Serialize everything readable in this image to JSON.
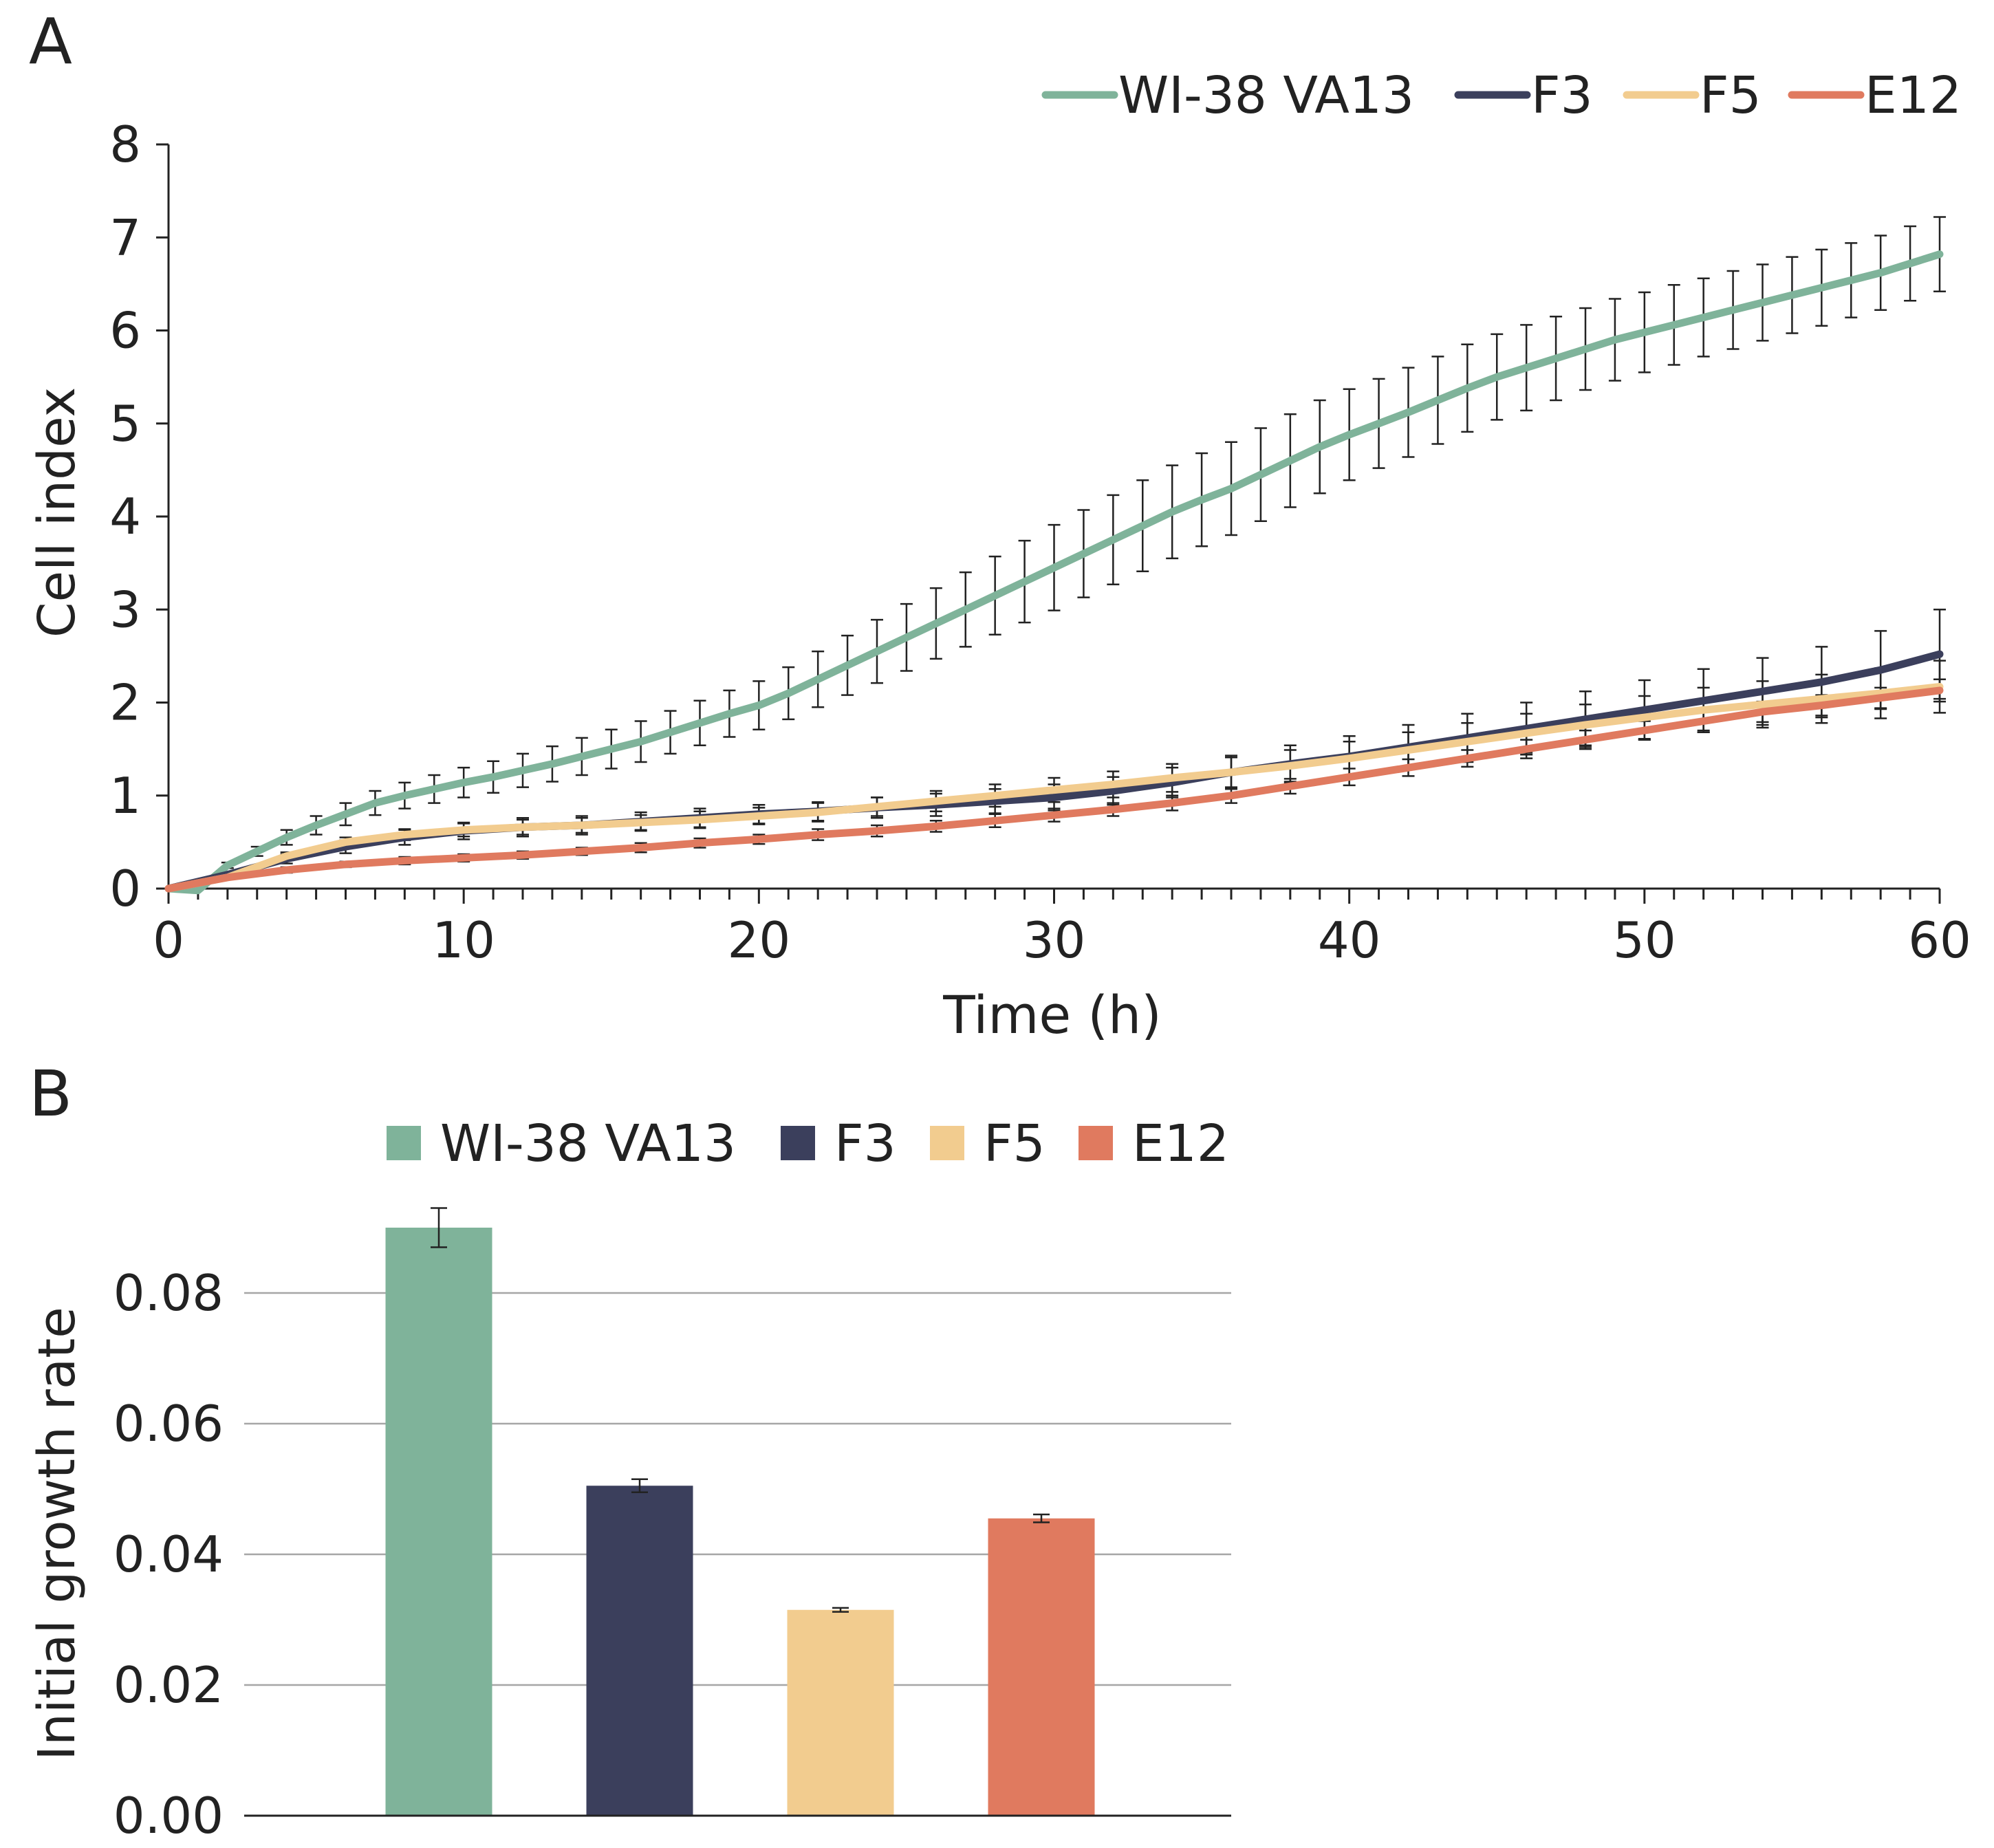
{
  "colors": {
    "WI-38 VA13": "#7fb39a",
    "F3": "#3b3f5c",
    "F5": "#f2cc8f",
    "E12": "#e07a5f",
    "axis": "#222222",
    "grid": "#a6a6a6"
  },
  "chart_data": [
    {
      "panel_label": "A",
      "type": "line",
      "xlabel": "Time (h)",
      "ylabel": "Cell index",
      "xlim": [
        0,
        60
      ],
      "ylim": [
        0,
        8
      ],
      "xticks": [
        "0",
        "10",
        "20",
        "30",
        "40",
        "50",
        "60"
      ],
      "yticks": [
        "0",
        "1",
        "2",
        "3",
        "4",
        "5",
        "6",
        "7",
        "8"
      ],
      "grid": false,
      "legend_position": "top-right",
      "series": [
        {
          "name": "WI-38 VA13",
          "x": [
            0,
            1,
            2,
            3,
            4,
            5,
            6,
            7,
            8,
            9,
            10,
            11,
            12,
            13,
            14,
            15,
            16,
            17,
            18,
            19,
            20,
            21,
            22,
            23,
            24,
            25,
            26,
            27,
            28,
            29,
            30,
            31,
            32,
            33,
            34,
            35,
            36,
            37,
            38,
            39,
            40,
            41,
            42,
            43,
            44,
            45,
            46,
            47,
            48,
            49,
            50,
            51,
            52,
            53,
            54,
            55,
            56,
            57,
            58,
            59,
            60
          ],
          "y": [
            0,
            -0.02,
            0.25,
            0.4,
            0.55,
            0.68,
            0.8,
            0.92,
            1.0,
            1.07,
            1.14,
            1.2,
            1.27,
            1.34,
            1.42,
            1.5,
            1.58,
            1.68,
            1.78,
            1.88,
            1.97,
            2.1,
            2.25,
            2.4,
            2.55,
            2.7,
            2.85,
            3.0,
            3.15,
            3.3,
            3.45,
            3.6,
            3.75,
            3.9,
            4.05,
            4.18,
            4.3,
            4.45,
            4.6,
            4.75,
            4.88,
            5.0,
            5.12,
            5.25,
            5.38,
            5.5,
            5.6,
            5.7,
            5.8,
            5.9,
            5.98,
            6.06,
            6.14,
            6.22,
            6.3,
            6.38,
            6.46,
            6.54,
            6.62,
            6.72,
            6.82
          ],
          "err": [
            0,
            0,
            0.03,
            0.05,
            0.08,
            0.1,
            0.12,
            0.13,
            0.14,
            0.15,
            0.16,
            0.17,
            0.18,
            0.19,
            0.2,
            0.21,
            0.22,
            0.23,
            0.24,
            0.25,
            0.26,
            0.28,
            0.3,
            0.32,
            0.34,
            0.36,
            0.38,
            0.4,
            0.42,
            0.44,
            0.46,
            0.47,
            0.48,
            0.49,
            0.5,
            0.5,
            0.5,
            0.5,
            0.5,
            0.5,
            0.49,
            0.48,
            0.48,
            0.47,
            0.47,
            0.46,
            0.46,
            0.45,
            0.44,
            0.44,
            0.43,
            0.43,
            0.42,
            0.42,
            0.41,
            0.41,
            0.41,
            0.4,
            0.4,
            0.4,
            0.4
          ]
        },
        {
          "name": "F3",
          "x": [
            0,
            2,
            4,
            6,
            8,
            10,
            12,
            14,
            16,
            18,
            20,
            22,
            24,
            26,
            28,
            30,
            32,
            34,
            36,
            38,
            40,
            42,
            44,
            46,
            48,
            50,
            52,
            54,
            56,
            58,
            60
          ],
          "y": [
            0,
            0.15,
            0.32,
            0.45,
            0.55,
            0.62,
            0.66,
            0.68,
            0.72,
            0.76,
            0.8,
            0.83,
            0.87,
            0.9,
            0.94,
            0.98,
            1.05,
            1.14,
            1.25,
            1.34,
            1.42,
            1.52,
            1.62,
            1.72,
            1.82,
            1.92,
            2.02,
            2.12,
            2.22,
            2.35,
            2.52
          ],
          "err": [
            0,
            0.03,
            0.05,
            0.07,
            0.08,
            0.09,
            0.1,
            0.1,
            0.1,
            0.1,
            0.1,
            0.1,
            0.11,
            0.12,
            0.13,
            0.14,
            0.15,
            0.16,
            0.18,
            0.2,
            0.22,
            0.24,
            0.26,
            0.28,
            0.3,
            0.32,
            0.34,
            0.36,
            0.38,
            0.42,
            0.48
          ]
        },
        {
          "name": "F5",
          "x": [
            0,
            2,
            4,
            6,
            8,
            10,
            12,
            14,
            16,
            18,
            20,
            22,
            24,
            26,
            28,
            30,
            32,
            34,
            36,
            38,
            40,
            42,
            44,
            46,
            48,
            50,
            52,
            54,
            56,
            58,
            60
          ],
          "y": [
            0,
            0.12,
            0.35,
            0.5,
            0.58,
            0.63,
            0.66,
            0.68,
            0.71,
            0.74,
            0.78,
            0.82,
            0.88,
            0.94,
            1.0,
            1.06,
            1.12,
            1.19,
            1.25,
            1.32,
            1.4,
            1.49,
            1.58,
            1.67,
            1.76,
            1.84,
            1.92,
            1.98,
            2.04,
            2.1,
            2.17
          ],
          "err": [
            0,
            0.02,
            0.04,
            0.05,
            0.06,
            0.07,
            0.08,
            0.08,
            0.08,
            0.09,
            0.09,
            0.1,
            0.1,
            0.11,
            0.12,
            0.13,
            0.14,
            0.15,
            0.16,
            0.17,
            0.18,
            0.19,
            0.2,
            0.21,
            0.22,
            0.23,
            0.24,
            0.25,
            0.26,
            0.27,
            0.28
          ]
        },
        {
          "name": "E12",
          "x": [
            0,
            2,
            4,
            6,
            8,
            10,
            12,
            14,
            16,
            18,
            20,
            22,
            24,
            26,
            28,
            30,
            32,
            34,
            36,
            38,
            40,
            42,
            44,
            46,
            48,
            50,
            52,
            54,
            56,
            58,
            60
          ],
          "y": [
            0,
            0.12,
            0.2,
            0.26,
            0.3,
            0.33,
            0.36,
            0.4,
            0.44,
            0.49,
            0.53,
            0.58,
            0.62,
            0.67,
            0.73,
            0.79,
            0.85,
            0.92,
            1.0,
            1.1,
            1.2,
            1.3,
            1.4,
            1.5,
            1.6,
            1.7,
            1.8,
            1.9,
            1.97,
            2.05,
            2.13
          ],
          "err": [
            0,
            0.02,
            0.03,
            0.03,
            0.04,
            0.04,
            0.04,
            0.04,
            0.05,
            0.05,
            0.05,
            0.06,
            0.06,
            0.06,
            0.07,
            0.07,
            0.07,
            0.08,
            0.08,
            0.08,
            0.09,
            0.09,
            0.09,
            0.1,
            0.1,
            0.1,
            0.1,
            0.11,
            0.11,
            0.11,
            0.12
          ]
        }
      ]
    },
    {
      "panel_label": "B",
      "type": "bar",
      "ylabel": "Initial growth rate",
      "ylim": [
        0,
        0.08
      ],
      "yticks": [
        "0.00",
        "0.02",
        "0.04",
        "0.06",
        "0.08"
      ],
      "grid": true,
      "legend_position": "top",
      "categories": [
        "WI-38 VA13",
        "F3",
        "F5",
        "E12"
      ],
      "values": [
        0.09,
        0.0505,
        0.0315,
        0.0455
      ],
      "errors": [
        0.003,
        0.001,
        0.0003,
        0.0006
      ]
    }
  ]
}
